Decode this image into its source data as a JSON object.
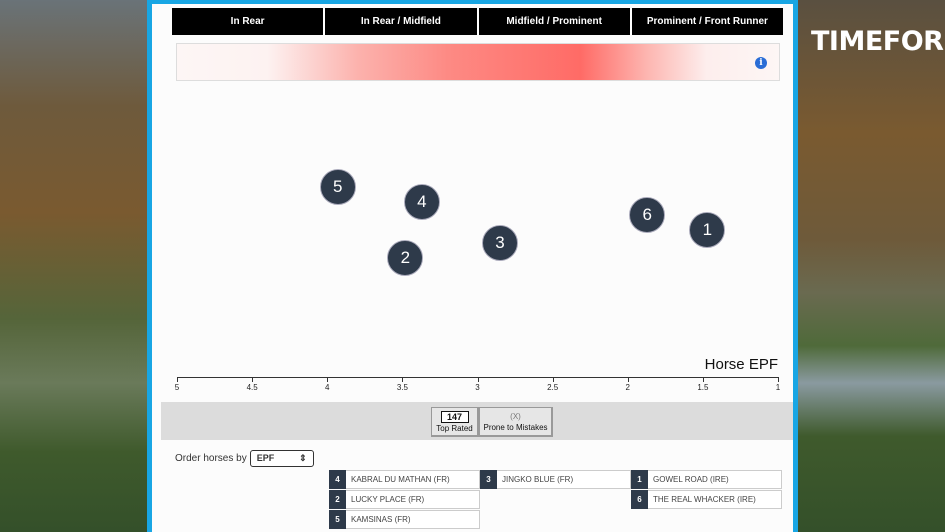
{
  "brand": {
    "logo": "TIMEFORM"
  },
  "header": {
    "columns": [
      "In Rear",
      "In Rear / Midfield",
      "Midfield / Prominent",
      "Prominent / Front Runner"
    ]
  },
  "heatmap": {
    "info_icon": "info-icon"
  },
  "chart_data": {
    "type": "scatter",
    "xlabel": "Horse EPF",
    "xlim": [
      5,
      1
    ],
    "ticks": [
      "5",
      "4.5",
      "4",
      "3.5",
      "3",
      "2.5",
      "2",
      "1.5",
      "1"
    ],
    "tick_values": [
      5,
      4.5,
      4,
      3.5,
      3,
      2.5,
      2,
      1.5,
      1
    ],
    "points": [
      {
        "label": "5",
        "x": 3.93
      },
      {
        "label": "4",
        "x": 3.37
      },
      {
        "label": "2",
        "x": 3.48
      },
      {
        "label": "3",
        "x": 2.85
      },
      {
        "label": "6",
        "x": 1.87
      },
      {
        "label": "1",
        "x": 1.47
      }
    ]
  },
  "key": {
    "top_rated_value": "147",
    "top_rated_label": "Top Rated",
    "prone_symbol": "(X)",
    "prone_label": "Prone to Mistakes"
  },
  "order": {
    "label": "Order horses by",
    "selected": "EPF"
  },
  "horses": [
    {
      "num": "4",
      "name": "KABRAL DU MATHAN (FR)"
    },
    {
      "num": "3",
      "name": "JINGKO BLUE (FR)"
    },
    {
      "num": "1",
      "name": "GOWEL ROAD (IRE)"
    },
    {
      "num": "2",
      "name": "LUCKY PLACE (FR)"
    },
    {
      "num": "6",
      "name": "THE REAL WHACKER (IRE)"
    },
    {
      "num": "5",
      "name": "KAMSINAS (FR)"
    }
  ]
}
